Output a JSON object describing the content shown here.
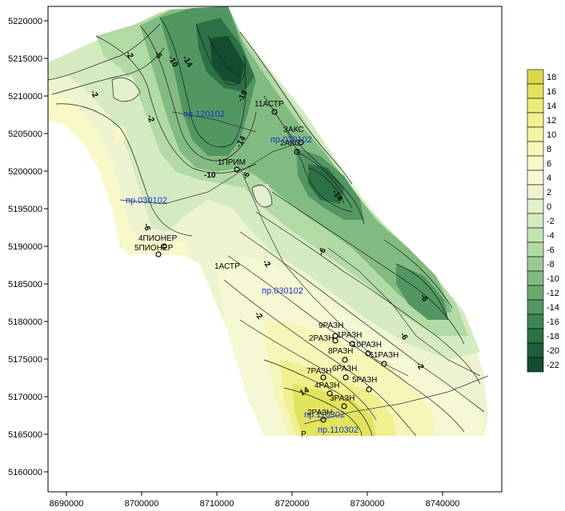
{
  "map": {
    "x_ticks": [
      "8690000",
      "8700000",
      "8710000",
      "8720000",
      "8730000",
      "8740000"
    ],
    "y_ticks": [
      "5220000",
      "5215000",
      "5210000",
      "5205000",
      "5200000",
      "5195000",
      "5190000",
      "5185000",
      "5180000",
      "5175000",
      "5170000",
      "5165000",
      "5160000"
    ],
    "contour_labels": [
      "-14",
      "-10",
      "-6",
      "-2",
      "-2",
      "-2",
      "-6",
      "-18",
      "-14",
      "-10",
      "-6",
      "-14",
      "-6",
      "-2",
      "-6",
      "-6",
      "-2",
      "14",
      "-2"
    ],
    "wells": [
      "11АСТР",
      "ЗАКС",
      "2АКС",
      "1ПРИМ",
      "4ПИОНЕР",
      "5ПИОНЕР",
      "1АСТР",
      "9РАЗН",
      "1РАЗН",
      "2РАЗН",
      "10РАЗН",
      "8РАЗН",
      "11РАЗН",
      "7РАЗН",
      "6РАЗН",
      "4РАЗН",
      "5РАЗН",
      "3РАЗН",
      "2РАЗН",
      "Р"
    ],
    "profiles": [
      "пр.120102",
      "пр.020102",
      "пр.030102",
      "пр.030102",
      "пр.110302",
      "пр.110302"
    ]
  },
  "legend": {
    "labels": [
      "18",
      "16",
      "14",
      "12",
      "10",
      "8",
      "6",
      "4",
      "2",
      "0",
      "-2",
      "-4",
      "-6",
      "-8",
      "-10",
      "-12",
      "-14",
      "-16",
      "-18",
      "-20",
      "-22"
    ],
    "colors": [
      "#d8d84a",
      "#e2e35f",
      "#ebeb78",
      "#f0f08f",
      "#f3f3a4",
      "#f6f6b8",
      "#f8f8c8",
      "#f5f8d2",
      "#eef4d2",
      "#e3f0cd",
      "#d4ebc2",
      "#c4e3b4",
      "#b2daa5",
      "#9acb93",
      "#82bb82",
      "#6aa972",
      "#529762",
      "#3e8454",
      "#2c7146",
      "#1e5e3a",
      "#134c30"
    ]
  }
}
